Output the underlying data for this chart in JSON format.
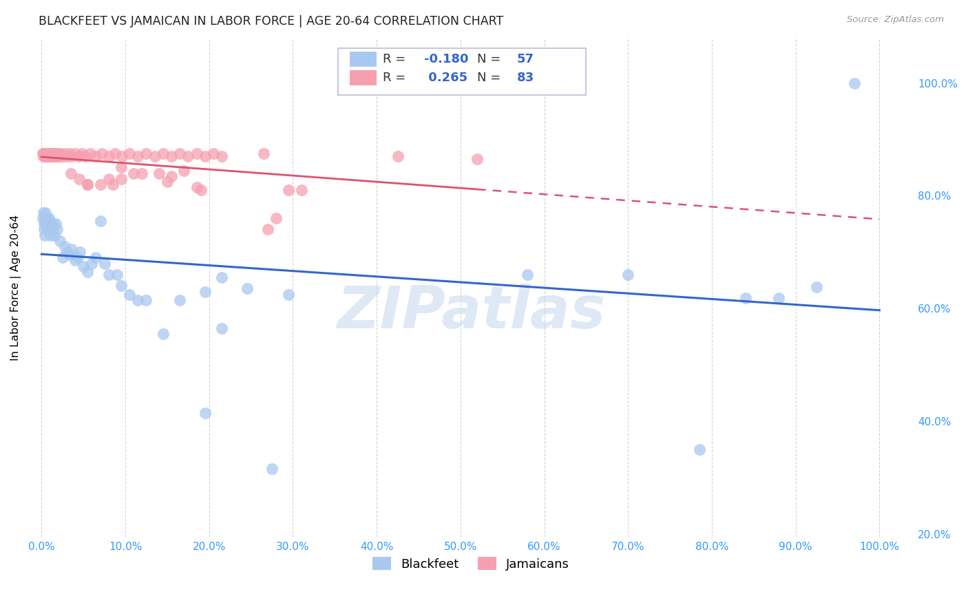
{
  "title": "BLACKFEET VS JAMAICAN IN LABOR FORCE | AGE 20-64 CORRELATION CHART",
  "source": "Source: ZipAtlas.com",
  "ylabel": "In Labor Force | Age 20-64",
  "blackfeet_R": -0.18,
  "blackfeet_N": 57,
  "jamaican_R": 0.265,
  "jamaican_N": 83,
  "blue_fill": "#A8C8F0",
  "pink_fill": "#F5A0B0",
  "blue_line_color": "#3366CC",
  "pink_line_color": "#E05070",
  "watermark_text": "ZIPatlas",
  "blackfeet_x": [
    0.001,
    0.002,
    0.003,
    0.003,
    0.004,
    0.004,
    0.005,
    0.005,
    0.006,
    0.007,
    0.007,
    0.008,
    0.009,
    0.01,
    0.011,
    0.012,
    0.013,
    0.015,
    0.017,
    0.019,
    0.022,
    0.025,
    0.028,
    0.03,
    0.033,
    0.036,
    0.04,
    0.043,
    0.046,
    0.05,
    0.055,
    0.06,
    0.065,
    0.07,
    0.075,
    0.08,
    0.09,
    0.095,
    0.105,
    0.115,
    0.125,
    0.145,
    0.165,
    0.195,
    0.215,
    0.245,
    0.275,
    0.295,
    0.195,
    0.215,
    0.58,
    0.7,
    0.785,
    0.84,
    0.88,
    0.925,
    0.97
  ],
  "blackfeet_y": [
    0.76,
    0.77,
    0.75,
    0.74,
    0.76,
    0.73,
    0.75,
    0.77,
    0.75,
    0.76,
    0.74,
    0.75,
    0.76,
    0.73,
    0.75,
    0.74,
    0.75,
    0.73,
    0.75,
    0.74,
    0.72,
    0.69,
    0.71,
    0.7,
    0.695,
    0.705,
    0.685,
    0.69,
    0.7,
    0.675,
    0.665,
    0.68,
    0.69,
    0.755,
    0.68,
    0.66,
    0.66,
    0.64,
    0.625,
    0.615,
    0.615,
    0.555,
    0.615,
    0.415,
    0.565,
    0.635,
    0.315,
    0.625,
    0.63,
    0.655,
    0.66,
    0.66,
    0.35,
    0.618,
    0.618,
    0.638,
    1.0
  ],
  "jamaican_x": [
    0.001,
    0.002,
    0.002,
    0.003,
    0.003,
    0.004,
    0.004,
    0.005,
    0.005,
    0.006,
    0.006,
    0.007,
    0.007,
    0.008,
    0.008,
    0.009,
    0.009,
    0.01,
    0.01,
    0.011,
    0.011,
    0.012,
    0.013,
    0.014,
    0.015,
    0.016,
    0.017,
    0.018,
    0.019,
    0.02,
    0.021,
    0.022,
    0.025,
    0.028,
    0.03,
    0.033,
    0.036,
    0.04,
    0.044,
    0.048,
    0.052,
    0.058,
    0.065,
    0.072,
    0.08,
    0.088,
    0.096,
    0.105,
    0.115,
    0.125,
    0.135,
    0.145,
    0.155,
    0.165,
    0.175,
    0.185,
    0.195,
    0.205,
    0.215,
    0.265,
    0.14,
    0.155,
    0.17,
    0.095,
    0.11,
    0.12,
    0.28,
    0.295,
    0.15,
    0.27,
    0.055,
    0.19,
    0.085,
    0.035,
    0.045,
    0.185,
    0.31,
    0.425,
    0.52,
    0.095,
    0.07,
    0.08,
    0.055
  ],
  "jamaican_y": [
    0.875,
    0.875,
    0.87,
    0.875,
    0.87,
    0.875,
    0.87,
    0.875,
    0.87,
    0.875,
    0.87,
    0.875,
    0.87,
    0.875,
    0.87,
    0.875,
    0.87,
    0.875,
    0.87,
    0.875,
    0.87,
    0.875,
    0.87,
    0.875,
    0.87,
    0.875,
    0.87,
    0.875,
    0.87,
    0.875,
    0.87,
    0.875,
    0.87,
    0.875,
    0.87,
    0.875,
    0.87,
    0.875,
    0.87,
    0.875,
    0.87,
    0.875,
    0.87,
    0.875,
    0.87,
    0.875,
    0.87,
    0.875,
    0.87,
    0.875,
    0.87,
    0.875,
    0.87,
    0.875,
    0.87,
    0.875,
    0.87,
    0.875,
    0.87,
    0.875,
    0.84,
    0.835,
    0.845,
    0.85,
    0.84,
    0.84,
    0.76,
    0.81,
    0.825,
    0.74,
    0.82,
    0.81,
    0.82,
    0.84,
    0.83,
    0.815,
    0.81,
    0.87,
    0.865,
    0.83,
    0.82,
    0.83,
    0.82
  ],
  "xlim": [
    -0.015,
    1.04
  ],
  "ylim": [
    0.195,
    1.08
  ],
  "xtick_spacing": 0.1,
  "ytick_spacing": 0.2,
  "grid_color": "#CCCCCC",
  "right_label_color": "#3399FF",
  "x_label_color": "#3399FF"
}
